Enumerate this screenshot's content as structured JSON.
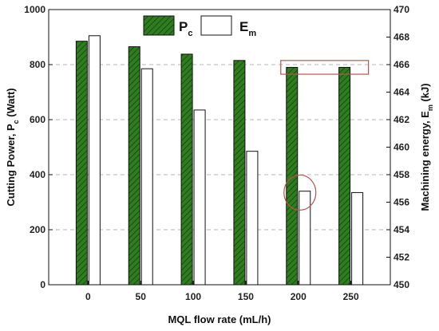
{
  "chart_data": {
    "type": "bar",
    "categories": [
      "0",
      "50",
      "100",
      "150",
      "200",
      "250"
    ],
    "xlabel": "MQL flow rate (mL/h)",
    "ylabel_left": "Cutting Power, P",
    "ylabel_left_sub": "c",
    "ylabel_left_unit": " (Watt)",
    "ylabel_right": "Machining energy, E",
    "ylabel_right_sub": "m",
    "ylabel_right_unit": " (kJ)",
    "y_left_lim": [
      0,
      1000
    ],
    "y_left_ticks": [
      "0",
      "200",
      "400",
      "600",
      "800",
      "1000"
    ],
    "y_right_lim": [
      450,
      470
    ],
    "y_right_ticks": [
      "450",
      "452",
      "454",
      "456",
      "458",
      "460",
      "462",
      "464",
      "466",
      "468",
      "470"
    ],
    "grid": "horizontal-dashed",
    "legend": {
      "placement": "top-center",
      "entries": [
        {
          "label": "P",
          "sub": "c"
        },
        {
          "label": "E",
          "sub": "m"
        }
      ]
    },
    "series": [
      {
        "name": "Pc",
        "axis": "left",
        "fill": "#2e7d1f",
        "hatch": true,
        "values": [
          885,
          865,
          838,
          815,
          790,
          790
        ]
      },
      {
        "name": "Em",
        "axis": "right",
        "fill": "#ffffff",
        "hatch": false,
        "values": [
          468.1,
          465.7,
          462.7,
          459.7,
          456.8,
          456.7
        ]
      }
    ],
    "annotations": [
      {
        "shape": "rectangle",
        "color": "#c0504d",
        "x_category": "200-250",
        "y_left_range": [
          765,
          815
        ]
      },
      {
        "shape": "ellipse",
        "color": "#c0504d",
        "x_category": "200",
        "y_left_center": 335
      }
    ]
  }
}
